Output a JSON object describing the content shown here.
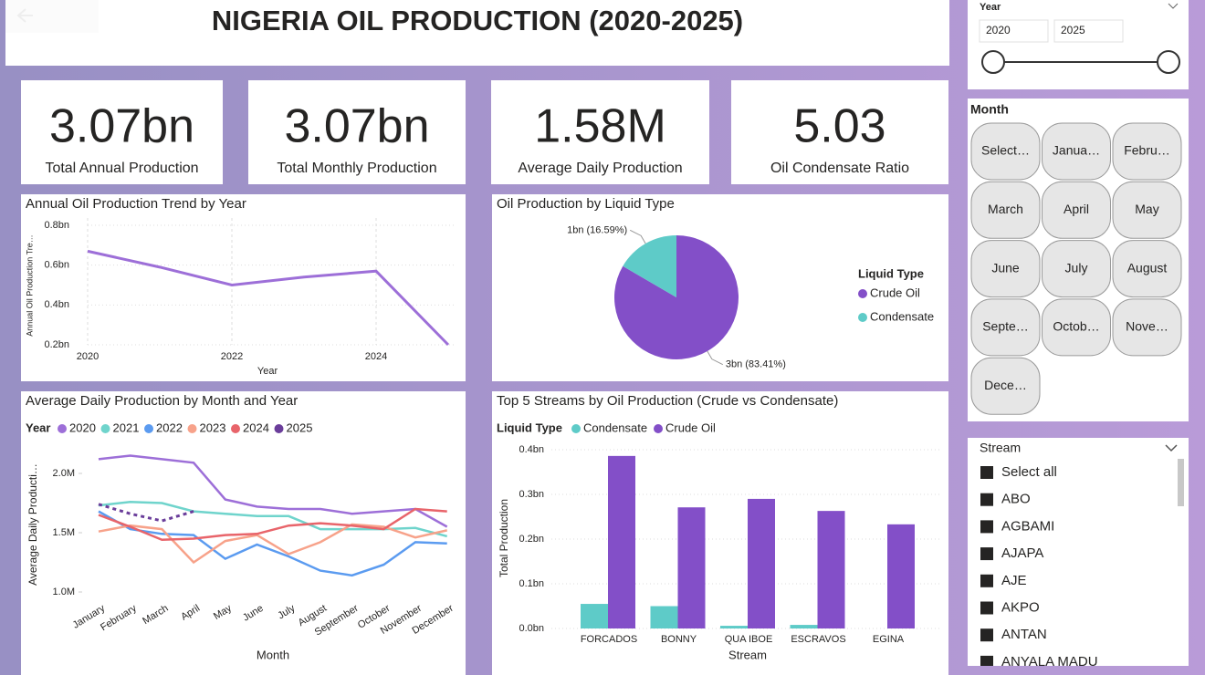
{
  "header": {
    "title": "NIGERIA OIL PRODUCTION (2020-2025)"
  },
  "kpis": [
    {
      "value": "3.07bn",
      "label": "Total Annual Production"
    },
    {
      "value": "3.07bn",
      "label": "Total Monthly Production"
    },
    {
      "value": "1.58M",
      "label": "Average Daily Production"
    },
    {
      "value": "5.03",
      "label": "Oil Condensate Ratio"
    }
  ],
  "chart_data": [
    {
      "type": "line",
      "title": "Annual Oil Production Trend by Year",
      "x_label": "Year",
      "y_label": "Annual Oil Production Tre…",
      "x": [
        2020,
        2021,
        2022,
        2023,
        2024,
        2025
      ],
      "values": [
        0.67,
        0.59,
        0.5,
        0.54,
        0.57,
        0.2
      ],
      "color": "#9d6fd8",
      "xlim": [
        2020,
        2025
      ],
      "xticks": [
        2020,
        2022,
        2024
      ],
      "ylim": [
        0.2,
        0.8
      ],
      "yticks": [
        {
          "value": 0.2,
          "label": "0.2bn"
        },
        {
          "value": 0.4,
          "label": "0.4bn"
        },
        {
          "value": 0.6,
          "label": "0.6bn"
        },
        {
          "value": 0.8,
          "label": "0.8bn"
        }
      ],
      "grid": true
    },
    {
      "type": "pie",
      "title": "Oil Production by Liquid Type",
      "legend_title": "Liquid Type",
      "categories": [
        "Crude Oil",
        "Condensate"
      ],
      "values": [
        83.41,
        16.59
      ],
      "value_labels": [
        "3bn (83.41%)",
        "1bn (16.59%)"
      ],
      "colors": [
        "#834fc8",
        "#5ecbc8"
      ]
    },
    {
      "type": "line",
      "title": "Average Daily Production by Month and Year",
      "legend_title": "Year",
      "x_label": "Month",
      "y_label": "Average Daily Producti…",
      "categories": [
        "January",
        "February",
        "March",
        "April",
        "May",
        "June",
        "July",
        "August",
        "September",
        "October",
        "November",
        "December"
      ],
      "series": [
        {
          "name": "2020",
          "color": "#9d6fd8",
          "values": [
            2.12,
            2.15,
            2.12,
            2.09,
            1.78,
            1.72,
            1.7,
            1.7,
            1.66,
            1.68,
            1.7,
            1.55
          ]
        },
        {
          "name": "2021",
          "color": "#6fd4cc",
          "values": [
            1.73,
            1.76,
            1.75,
            1.68,
            1.66,
            1.64,
            1.64,
            1.53,
            1.53,
            1.53,
            1.54,
            1.47
          ]
        },
        {
          "name": "2022",
          "color": "#5b9bf0",
          "values": [
            1.68,
            1.53,
            1.49,
            1.48,
            1.28,
            1.4,
            1.3,
            1.18,
            1.14,
            1.23,
            1.42,
            1.41
          ]
        },
        {
          "name": "2023",
          "color": "#f7a28a",
          "values": [
            1.51,
            1.56,
            1.53,
            1.25,
            1.43,
            1.48,
            1.32,
            1.42,
            1.57,
            1.55,
            1.46,
            1.52
          ]
        },
        {
          "name": "2024",
          "color": "#e8646a",
          "values": [
            1.65,
            1.55,
            1.44,
            1.45,
            1.48,
            1.49,
            1.56,
            1.58,
            1.56,
            1.53,
            1.7,
            1.68
          ]
        },
        {
          "name": "2025",
          "color": "#6a3d9a",
          "dashed": true,
          "values": [
            1.74,
            1.66,
            1.6,
            1.68,
            null,
            null,
            null,
            null,
            null,
            null,
            null,
            null
          ]
        }
      ],
      "ylim": [
        0.9,
        2.2
      ],
      "yticks": [
        {
          "value": 1.0,
          "label": "1.0M"
        },
        {
          "value": 1.5,
          "label": "1.5M"
        },
        {
          "value": 2.0,
          "label": "2.0M"
        }
      ]
    },
    {
      "type": "bar",
      "title": "Top 5 Streams by Oil Production (Crude vs Condensate)",
      "legend_title": "Liquid Type",
      "x_label": "Stream",
      "y_label": "Total Production",
      "categories": [
        "FORCADOS",
        "BONNY",
        "QUA IBOE",
        "ESCRAVOS",
        "EGINA"
      ],
      "series": [
        {
          "name": "Condensate",
          "color": "#5ecbc8",
          "values": [
            0.055,
            0.05,
            0.006,
            0.008,
            0
          ]
        },
        {
          "name": "Crude Oil",
          "color": "#834fc8",
          "values": [
            0.386,
            0.271,
            0.29,
            0.263,
            0.233
          ]
        }
      ],
      "ylim": [
        0,
        0.4
      ],
      "yticks": [
        {
          "value": 0,
          "label": "0.0bn"
        },
        {
          "value": 0.1,
          "label": "0.1bn"
        },
        {
          "value": 0.2,
          "label": "0.2bn"
        },
        {
          "value": 0.3,
          "label": "0.3bn"
        },
        {
          "value": 0.4,
          "label": "0.4bn"
        }
      ],
      "grid": true
    }
  ],
  "slicers": {
    "year": {
      "title": "Year",
      "from": "2020",
      "to": "2025"
    },
    "month": {
      "title": "Month",
      "options": [
        "Select…",
        "Janua…",
        "Febru…",
        "March",
        "April",
        "May",
        "June",
        "July",
        "August",
        "Septe…",
        "Octob…",
        "Nove…",
        "Dece…"
      ]
    },
    "stream": {
      "title": "Stream",
      "options": [
        "Select all",
        "ABO",
        "AGBAMI",
        "AJAPA",
        "AJE",
        "AKPO",
        "ANTAN",
        "ANYALA MADU"
      ]
    }
  }
}
